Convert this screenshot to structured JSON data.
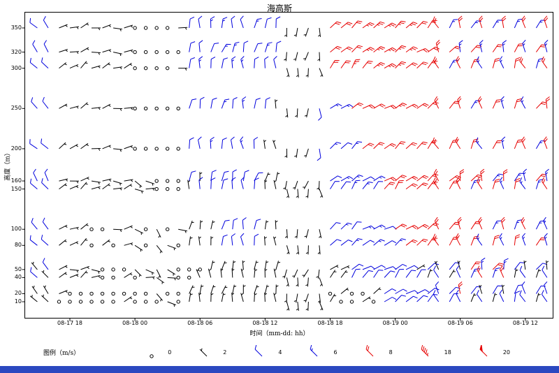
{
  "title": "海高斯",
  "axes": {
    "ylabel": "高度（m）",
    "xlabel": "时间（mm-dd: hh）",
    "yticks": [
      10,
      20,
      40,
      50,
      80,
      100,
      150,
      160,
      200,
      250,
      300,
      320,
      350
    ],
    "xtick_labels": [
      "08-17 18",
      "08-18 00",
      "08-18 06",
      "08-18 12",
      "08-18 18",
      "08-19 00",
      "08-19 06",
      "08-19 12"
    ],
    "xtick_hours": [
      0,
      6,
      12,
      18,
      24,
      30,
      36,
      42
    ]
  },
  "legend": {
    "label": "图例（m/s）",
    "items": [
      {
        "label": "0",
        "speed": 0
      },
      {
        "label": "2",
        "speed": 2
      },
      {
        "label": "4",
        "speed": 4
      },
      {
        "label": "6",
        "speed": 6
      },
      {
        "label": "8",
        "speed": 8
      },
      {
        "label": "18",
        "speed": 18
      },
      {
        "label": "20",
        "speed": 20
      }
    ]
  },
  "window": {
    "footer_bar_color": "#2b48c0"
  },
  "chart_data": {
    "type": "scatter",
    "subtype": "wind-barbs",
    "title": "海高斯",
    "xlabel": "时间（mm-dd: hh）",
    "ylabel": "高度（m）",
    "speed_unit": "m/s",
    "x_time_start": "08-17 15:00",
    "x_time_step_hours": 1,
    "n_times": 48,
    "x_hours_from_08-17-18": [
      -3,
      44
    ],
    "heights_m": [
      350,
      320,
      300,
      250,
      200,
      160,
      150,
      100,
      80,
      50,
      40,
      20,
      10
    ],
    "barb_convention": {
      "half_barb": 2,
      "full_barb": 4,
      "pennant": 20,
      "calm": "circle"
    },
    "color_rules": [
      {
        "max": 3,
        "color": "#000000"
      },
      {
        "max": 7,
        "color": "#0000dd"
      },
      {
        "max": 99,
        "color": "#e60000"
      }
    ],
    "dir_base_deg": [
      315,
      320,
      60,
      75,
      50,
      85,
      65,
      95,
      70,
      120,
      100,
      140,
      110,
      90,
      10,
      355,
      5,
      15,
      0,
      350,
      10,
      5,
      355,
      175,
      185,
      195,
      170,
      45,
      50,
      40,
      55,
      50,
      60,
      45,
      55,
      50,
      40,
      330,
      35,
      340,
      30,
      335,
      25,
      345,
      20,
      335,
      30,
      340
    ],
    "dir_row_offsets_deg": [
      0,
      8,
      -8,
      5,
      -5,
      10,
      -10,
      4,
      -4,
      12,
      -12,
      6,
      -6
    ],
    "rows": [
      {
        "height_m": 350,
        "speeds_ms": [
          4,
          5,
          2,
          2,
          3,
          2,
          2,
          3,
          2,
          0,
          0,
          0,
          0,
          2,
          5,
          5,
          6,
          6,
          5,
          5,
          6,
          5,
          4,
          3,
          2,
          2,
          3,
          8,
          8,
          9,
          10,
          10,
          11,
          10,
          10,
          9,
          9,
          8,
          6,
          8,
          6,
          8,
          6,
          8,
          6,
          8,
          6,
          8
        ]
      },
      {
        "height_m": 320,
        "speeds_ms": [
          4,
          4,
          2,
          3,
          2,
          2,
          3,
          2,
          2,
          0,
          0,
          0,
          0,
          0,
          4,
          5,
          5,
          6,
          6,
          5,
          5,
          6,
          5,
          2,
          3,
          2,
          2,
          8,
          9,
          9,
          10,
          10,
          10,
          11,
          10,
          9,
          8,
          8,
          8,
          6,
          8,
          6,
          8,
          6,
          8,
          6,
          8,
          6
        ]
      },
      {
        "height_m": 300,
        "speeds_ms": [
          5,
          4,
          3,
          2,
          2,
          3,
          2,
          2,
          3,
          0,
          0,
          0,
          0,
          2,
          5,
          6,
          5,
          5,
          6,
          6,
          5,
          5,
          4,
          3,
          2,
          3,
          2,
          8,
          8,
          10,
          9,
          10,
          10,
          10,
          9,
          9,
          8,
          8,
          6,
          8,
          8,
          6,
          8,
          6,
          8,
          8,
          6,
          8
        ]
      },
      {
        "height_m": 250,
        "speeds_ms": [
          4,
          4,
          2,
          2,
          3,
          2,
          3,
          2,
          2,
          0,
          0,
          0,
          0,
          0,
          4,
          5,
          5,
          6,
          5,
          6,
          5,
          4,
          3,
          2,
          3,
          2,
          5,
          6,
          6,
          8,
          8,
          9,
          9,
          10,
          9,
          9,
          8,
          8,
          8,
          8,
          6,
          8,
          8,
          6,
          8,
          6,
          8,
          8
        ]
      },
      {
        "height_m": 200,
        "speeds_ms": [
          4,
          4,
          2,
          3,
          2,
          3,
          2,
          2,
          3,
          0,
          0,
          0,
          0,
          0,
          4,
          5,
          6,
          5,
          5,
          6,
          5,
          3,
          2,
          3,
          2,
          3,
          5,
          6,
          5,
          6,
          8,
          8,
          9,
          9,
          9,
          8,
          9,
          8,
          8,
          8,
          8,
          6,
          8,
          6,
          8,
          8,
          6,
          8
        ]
      },
      {
        "height_m": 160,
        "speeds_ms": [
          4,
          4,
          2,
          2,
          3,
          3,
          2,
          3,
          2,
          2,
          3,
          0,
          0,
          0,
          4,
          3,
          5,
          4,
          5,
          4,
          5,
          3,
          2,
          3,
          2,
          2,
          3,
          5,
          6,
          6,
          5,
          6,
          8,
          8,
          9,
          9,
          8,
          8,
          9,
          8,
          8,
          8,
          6,
          8,
          6,
          6,
          8,
          6
        ]
      },
      {
        "height_m": 150,
        "speeds_ms": [
          5,
          4,
          3,
          2,
          2,
          2,
          3,
          2,
          3,
          2,
          2,
          0,
          0,
          0,
          3,
          4,
          4,
          5,
          4,
          5,
          4,
          2,
          3,
          2,
          3,
          2,
          2,
          5,
          5,
          6,
          6,
          5,
          8,
          8,
          8,
          9,
          8,
          9,
          8,
          8,
          6,
          8,
          8,
          6,
          8,
          6,
          6,
          8
        ]
      },
      {
        "height_m": 100,
        "speeds_ms": [
          4,
          4,
          2,
          2,
          2,
          0,
          0,
          2,
          3,
          2,
          0,
          2,
          0,
          3,
          3,
          2,
          3,
          4,
          5,
          4,
          4,
          2,
          3,
          3,
          2,
          3,
          2,
          5,
          6,
          5,
          6,
          6,
          5,
          8,
          8,
          9,
          8,
          9,
          8,
          8,
          9,
          8,
          6,
          8,
          6,
          8,
          6,
          6
        ]
      },
      {
        "height_m": 80,
        "speeds_ms": [
          4,
          4,
          2,
          3,
          2,
          0,
          2,
          0,
          2,
          3,
          0,
          2,
          2,
          0,
          3,
          3,
          2,
          4,
          4,
          5,
          4,
          3,
          2,
          2,
          3,
          2,
          3,
          4,
          5,
          6,
          5,
          6,
          5,
          6,
          8,
          8,
          8,
          9,
          8,
          8,
          8,
          6,
          8,
          6,
          8,
          6,
          8,
          6
        ]
      },
      {
        "height_m": 50,
        "speeds_ms": [
          3,
          4,
          2,
          2,
          3,
          2,
          0,
          0,
          0,
          2,
          3,
          2,
          2,
          0,
          0,
          0,
          2,
          3,
          2,
          3,
          2,
          2,
          3,
          2,
          3,
          2,
          2,
          3,
          2,
          4,
          5,
          4,
          5,
          5,
          4,
          3,
          4,
          3,
          4,
          3,
          8,
          6,
          8,
          6,
          4,
          3,
          4,
          3
        ]
      },
      {
        "height_m": 40,
        "speeds_ms": [
          4,
          3,
          2,
          3,
          2,
          2,
          0,
          0,
          2,
          0,
          2,
          2,
          3,
          0,
          0,
          2,
          2,
          2,
          3,
          2,
          3,
          2,
          2,
          3,
          2,
          2,
          3,
          2,
          3,
          4,
          4,
          5,
          4,
          5,
          4,
          4,
          3,
          4,
          3,
          4,
          6,
          8,
          6,
          8,
          3,
          4,
          3,
          4
        ]
      },
      {
        "height_m": 20,
        "speeds_ms": [
          2,
          3,
          2,
          0,
          0,
          0,
          0,
          0,
          0,
          0,
          0,
          2,
          0,
          0,
          2,
          2,
          3,
          2,
          2,
          3,
          2,
          2,
          3,
          2,
          2,
          3,
          2,
          0,
          2,
          0,
          0,
          2,
          4,
          4,
          5,
          4,
          5,
          4,
          4,
          8,
          4,
          3,
          4,
          3,
          4,
          5,
          4,
          4
        ]
      },
      {
        "height_m": 10,
        "speeds_ms": [
          2,
          2,
          0,
          0,
          0,
          0,
          0,
          0,
          2,
          0,
          0,
          0,
          2,
          0,
          2,
          3,
          2,
          2,
          3,
          2,
          2,
          2,
          2,
          3,
          2,
          2,
          2,
          2,
          0,
          0,
          2,
          0,
          4,
          5,
          4,
          4,
          4,
          5,
          4,
          4,
          3,
          4,
          3,
          4,
          4,
          4,
          3,
          4
        ]
      }
    ]
  }
}
